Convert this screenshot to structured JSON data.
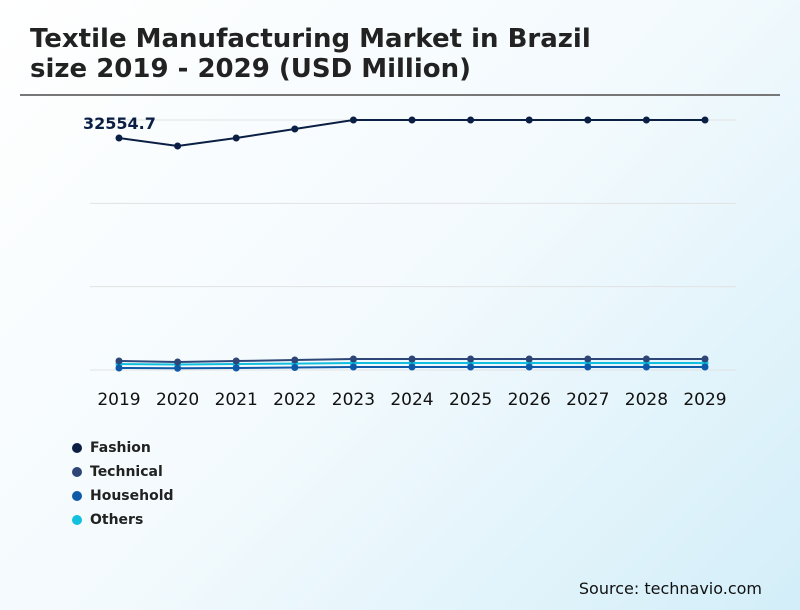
{
  "title_line1": "Textile Manufacturing Market in Brazil",
  "title_line2": "size 2019 - 2029 (USD Million)",
  "source": "Source: technavio.com",
  "chart_data": {
    "type": "line",
    "x": [
      "2019",
      "2020",
      "2021",
      "2022",
      "2023",
      "2024",
      "2025",
      "2026",
      "2027",
      "2028",
      "2029"
    ],
    "ylim": [
      0,
      35080
    ],
    "grid": true,
    "legend_placement": "bottom-left",
    "annotation": "32554.7",
    "series": [
      {
        "name": "Fashion",
        "color": "#0b1f45",
        "values": [
          32554.7,
          31430,
          32554.7,
          33820,
          35080,
          35080,
          35080,
          35080,
          35080,
          35080,
          35080
        ]
      },
      {
        "name": "Technical",
        "color": "#2d4677",
        "values": [
          1260,
          1120,
          1260,
          1400,
          1540,
          1540,
          1540,
          1540,
          1540,
          1540,
          1540
        ]
      },
      {
        "name": "Household",
        "color": "#0f5aa8",
        "values": [
          280,
          250,
          280,
          350,
          420,
          420,
          420,
          420,
          420,
          420,
          420
        ]
      },
      {
        "name": "Others",
        "color": "#11bfdf",
        "values": [
          840,
          780,
          840,
          900,
          980,
          980,
          980,
          980,
          980,
          980,
          980
        ]
      }
    ]
  }
}
